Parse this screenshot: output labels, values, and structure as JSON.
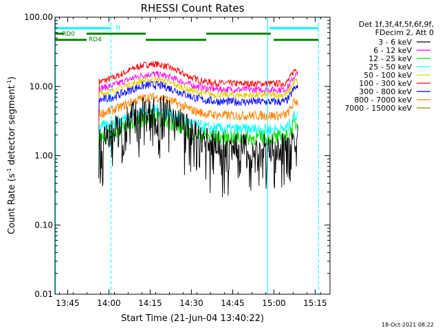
{
  "chart_data": {
    "type": "line",
    "title": "RHESSI Count Rates",
    "xlabel": "Start Time (21-Jun-04 13:40:22)",
    "ylabel_main": "Count Rate (s",
    "ylabel_sup1": "-1",
    "ylabel_mid": " detector segment",
    "ylabel_sup2": "-1",
    "ylabel_end": ")",
    "x_axis": {
      "unit": "minutes after 13:40:22",
      "range": [
        0,
        100
      ],
      "ticks": [
        {
          "t": 4.6,
          "label": "13:45"
        },
        {
          "t": 19.6,
          "label": "14:00"
        },
        {
          "t": 34.6,
          "label": "14:15"
        },
        {
          "t": 49.6,
          "label": "14:30"
        },
        {
          "t": 64.6,
          "label": "14:45"
        },
        {
          "t": 79.6,
          "label": "15:00"
        },
        {
          "t": 94.6,
          "label": "15:15"
        }
      ]
    },
    "y_axis": {
      "scale": "log",
      "range": [
        0.01,
        100
      ],
      "ticks": [
        {
          "v": 100,
          "label": "100.00"
        },
        {
          "v": 10,
          "label": "10.00"
        },
        {
          "v": 1,
          "label": "1.00"
        },
        {
          "v": 0.1,
          "label": "0.10"
        },
        {
          "v": 0.01,
          "label": "0.01"
        }
      ]
    },
    "legend": {
      "position": "right",
      "header": [
        "Det 1f,3f,4f,5f,6f,9f,",
        "FDecim 2, Att 0"
      ],
      "entries": [
        {
          "label": "3 - 6 keV",
          "color": "#000000"
        },
        {
          "label": "6 - 12 keV",
          "color": "#ff00ff"
        },
        {
          "label": "12 - 25 keV",
          "color": "#00e000"
        },
        {
          "label": "25 - 50 keV",
          "color": "#00ffff"
        },
        {
          "label": "50 - 100 keV",
          "color": "#e0d000"
        },
        {
          "label": "100 - 300 keV",
          "color": "#ff0000"
        },
        {
          "label": "300 - 800 keV",
          "color": "#0000ff"
        },
        {
          "label": "800 - 7000 keV",
          "color": "#ff8000"
        },
        {
          "label": "7000 - 15000 keV",
          "color": "#808000"
        }
      ]
    },
    "series": [
      {
        "band": "100 - 300 keV",
        "color": "#ff0000",
        "base": 11,
        "peak": 21,
        "noise": 0.05
      },
      {
        "band": "6 - 12 keV",
        "color": "#ff00ff",
        "base": 9,
        "peak": 15,
        "noise": 0.05
      },
      {
        "band": "50 - 100 keV",
        "color": "#e0d000",
        "base": 7.5,
        "peak": 12.5,
        "noise": 0.05
      },
      {
        "band": "300 - 800 keV",
        "color": "#0000ff",
        "base": 6,
        "peak": 10.5,
        "noise": 0.06
      },
      {
        "band": "800 - 7000 keV",
        "color": "#ff8000",
        "base": 3.8,
        "peak": 7,
        "noise": 0.07
      },
      {
        "band": "25 - 50 keV",
        "color": "#00ffff",
        "base": 2.4,
        "peak": 4.6,
        "noise": 0.09
      },
      {
        "band": "12 - 25 keV",
        "color": "#00e000",
        "base": 1.8,
        "peak": 3.4,
        "noise": 0.11
      },
      {
        "band": "3 - 6 keV",
        "color": "#000000",
        "base": 1.35,
        "peak": 5.2,
        "noise": 0.2
      }
    ],
    "data_window_minutes": [
      15.9,
      88.3
    ],
    "peak_time_minutes": 35.5,
    "flags": {
      "cyan_color": "#00ffff",
      "green_color": "#008000",
      "cyan_vlines": [
        0.2,
        20.3,
        77.3,
        95.8
      ],
      "cyan_dashed": [
        20.3,
        95.8
      ],
      "cyan_solid": [
        0.2,
        77.3
      ],
      "saa_N": {
        "label": "N",
        "segments": [
          [
            0.2,
            20.3
          ],
          [
            78.0,
            95.8
          ]
        ]
      },
      "rd0": {
        "label": "RD0",
        "segments": [
          [
            0.2,
            3.2
          ],
          [
            11.5,
            33.0
          ],
          [
            55.0,
            78.5
          ]
        ]
      },
      "rd4": {
        "label": "RD4",
        "segments": [
          [
            0.2,
            11.5
          ],
          [
            33.0,
            55.0
          ],
          [
            79.5,
            95.8
          ]
        ]
      }
    }
  },
  "footer": {
    "timestamp": "18-Oct-2021 08:22"
  }
}
